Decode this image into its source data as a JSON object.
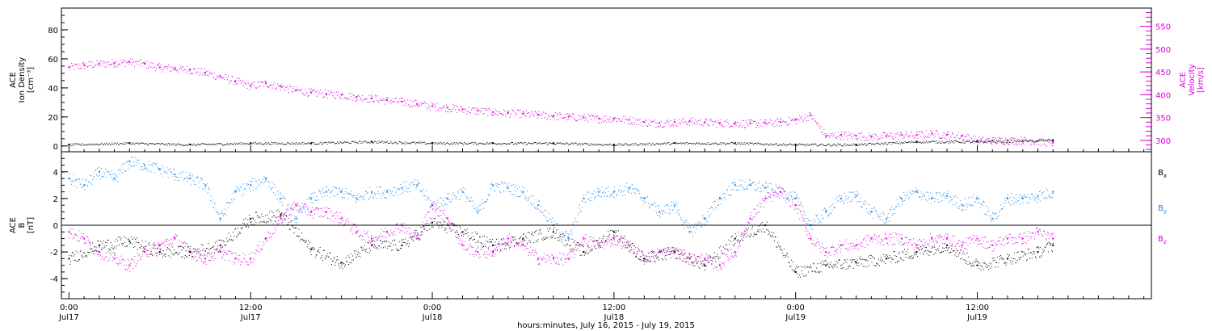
{
  "colors": {
    "axis": "#000000",
    "velocity": "#dd00dd",
    "density": "#000000",
    "bx": "#000000",
    "by": "#1e88e5",
    "bz": "#dd00dd"
  },
  "chart_data": [
    {
      "type": "scatter",
      "panel": "top",
      "xlabel": "hours:minutes, July 16, 2015 - July 19, 2015",
      "x_unit": "hours since 2015-07-17 00:00 UT",
      "xlim": [
        -0.5,
        71.5
      ],
      "x_ticks": [
        {
          "x": 0,
          "time": "0:00",
          "date": "Jul17"
        },
        {
          "x": 12,
          "time": "12:00",
          "date": "Jul17"
        },
        {
          "x": 24,
          "time": "0:00",
          "date": "Jul18"
        },
        {
          "x": 36,
          "time": "12:00",
          "date": "Jul18"
        },
        {
          "x": 48,
          "time": "0:00",
          "date": "Jul19"
        },
        {
          "x": 60,
          "time": "12:00",
          "date": "Jul19"
        }
      ],
      "left_axis": {
        "label_lines": [
          "ACE",
          "Ion Density",
          "[cm⁻³]"
        ],
        "ylim": [
          -4,
          95
        ],
        "ticks": [
          0,
          20,
          40,
          60,
          80
        ]
      },
      "right_axis": {
        "label_lines": [
          "ACE",
          "Velocity",
          "[km/s]"
        ],
        "ylim": [
          275,
          590
        ],
        "ticks": [
          300,
          350,
          400,
          450,
          500,
          550
        ]
      },
      "series": [
        {
          "name": "Velocity",
          "axis": "right",
          "color": "#dd00dd",
          "x": [
            0,
            1,
            2,
            3,
            4,
            5,
            6,
            7,
            8,
            9,
            10,
            11,
            12,
            13,
            14,
            15,
            16,
            17,
            18,
            19,
            20,
            21,
            22,
            23,
            24,
            25,
            26,
            27,
            28,
            29,
            30,
            31,
            32,
            33,
            34,
            35,
            36,
            37,
            38,
            39,
            40,
            41,
            42,
            43,
            44,
            45,
            46,
            47,
            48,
            49,
            50,
            51,
            52,
            53,
            54,
            55,
            56,
            57,
            58,
            59,
            60,
            61,
            62,
            63,
            64,
            65
          ],
          "values": [
            460,
            465,
            468,
            470,
            472,
            468,
            460,
            458,
            455,
            448,
            440,
            430,
            420,
            425,
            418,
            410,
            405,
            402,
            400,
            395,
            392,
            388,
            385,
            380,
            375,
            372,
            368,
            365,
            362,
            360,
            358,
            356,
            354,
            352,
            350,
            348,
            348,
            345,
            340,
            338,
            340,
            342,
            340,
            338,
            338,
            337,
            338,
            340,
            345,
            355,
            310,
            312,
            310,
            308,
            310,
            312,
            312,
            315,
            312,
            310,
            300,
            300,
            300,
            300,
            298,
            295
          ]
        },
        {
          "name": "Ion Density",
          "axis": "left",
          "color": "#000000",
          "x": [
            0,
            4,
            8,
            12,
            16,
            20,
            24,
            28,
            32,
            36,
            40,
            44,
            48,
            52,
            56,
            60,
            65
          ],
          "values": [
            1,
            2,
            1,
            2,
            2,
            3,
            2,
            2,
            2,
            1,
            2,
            2,
            1,
            1,
            3,
            3,
            4
          ]
        }
      ]
    },
    {
      "type": "scatter",
      "panel": "bottom",
      "xlim": [
        -0.5,
        71.5
      ],
      "ylabel_lines": [
        "ACE",
        "B",
        "[nT]"
      ],
      "ylim": [
        -5.5,
        5.5
      ],
      "y_ticks": [
        -4,
        -2,
        0,
        2,
        4
      ],
      "zero_line": true,
      "legend_position": "right",
      "series": [
        {
          "name": "Bx",
          "color": "#000000",
          "x": [
            0,
            2,
            4,
            6,
            8,
            10,
            12,
            14,
            16,
            18,
            20,
            22,
            24,
            26,
            28,
            30,
            32,
            34,
            36,
            38,
            40,
            42,
            44,
            46,
            48,
            50,
            52,
            54,
            56,
            58,
            60,
            62,
            64,
            65
          ],
          "values": [
            -2.5,
            -1.5,
            -1.2,
            -2.0,
            -2.0,
            -1.5,
            0.5,
            0.8,
            -1.8,
            -2.8,
            -1.5,
            -1.5,
            0.2,
            -0.5,
            -1.5,
            -1.0,
            -0.5,
            -2.0,
            -0.5,
            -2.5,
            -2.0,
            -3.0,
            -1.0,
            0.0,
            -3.5,
            -3.0,
            -2.8,
            -2.5,
            -2.0,
            -1.5,
            -3.0,
            -2.5,
            -2.0,
            -1.5
          ]
        },
        {
          "name": "By",
          "color": "#1e88e5",
          "x": [
            0,
            1,
            2,
            3,
            4,
            5,
            6,
            7,
            8,
            9,
            10,
            11,
            12,
            13,
            14,
            15,
            16,
            17,
            18,
            19,
            20,
            21,
            22,
            23,
            24,
            25,
            26,
            27,
            28,
            29,
            30,
            31,
            32,
            33,
            34,
            35,
            36,
            37,
            38,
            39,
            40,
            41,
            42,
            43,
            44,
            45,
            46,
            47,
            48,
            49,
            50,
            51,
            52,
            53,
            54,
            55,
            56,
            57,
            58,
            59,
            60,
            61,
            62,
            63,
            64,
            65
          ],
          "values": [
            3.5,
            3.0,
            4.0,
            3.5,
            4.8,
            4.5,
            4.2,
            3.8,
            3.5,
            3.0,
            0.5,
            2.5,
            3.0,
            3.5,
            2.0,
            0.5,
            2.0,
            2.5,
            2.5,
            2.0,
            2.5,
            2.5,
            2.8,
            3.0,
            1.5,
            2.0,
            2.5,
            1.0,
            3.0,
            2.8,
            2.5,
            1.5,
            0.0,
            -1.0,
            2.0,
            2.5,
            2.5,
            2.8,
            2.0,
            1.0,
            1.5,
            -0.5,
            0.5,
            2.0,
            3.0,
            3.0,
            2.8,
            2.5,
            2.0,
            0.0,
            1.0,
            2.0,
            2.2,
            1.0,
            0.5,
            2.0,
            2.5,
            2.0,
            2.2,
            1.5,
            2.0,
            0.5,
            2.0,
            2.0,
            2.2,
            2.5
          ]
        },
        {
          "name": "Bz",
          "color": "#dd00dd",
          "x": [
            0,
            1,
            2,
            3,
            4,
            5,
            6,
            7,
            8,
            9,
            10,
            11,
            12,
            13,
            14,
            15,
            16,
            17,
            18,
            19,
            20,
            21,
            22,
            23,
            24,
            25,
            26,
            27,
            28,
            29,
            30,
            31,
            32,
            33,
            34,
            35,
            36,
            37,
            38,
            39,
            40,
            41,
            42,
            43,
            44,
            45,
            46,
            47,
            48,
            49,
            50,
            51,
            52,
            53,
            54,
            55,
            56,
            57,
            58,
            59,
            60,
            61,
            62,
            63,
            64,
            65
          ],
          "values": [
            -0.5,
            -1.0,
            -2.0,
            -2.5,
            -3.0,
            -2.0,
            -1.5,
            -1.0,
            -2.0,
            -2.5,
            -2.0,
            -2.5,
            -2.5,
            -1.0,
            0.5,
            1.5,
            1.0,
            1.0,
            0.5,
            -0.5,
            -1.0,
            -0.5,
            0.0,
            -1.0,
            1.5,
            0.5,
            -1.5,
            -2.0,
            -2.0,
            -1.0,
            -1.5,
            -2.5,
            -2.5,
            -2.5,
            -1.0,
            -1.5,
            -1.0,
            -1.5,
            -2.5,
            -2.0,
            -2.0,
            -2.5,
            -2.5,
            -3.0,
            -2.0,
            0.5,
            2.0,
            2.5,
            1.5,
            -1.0,
            -2.0,
            -1.5,
            -1.5,
            -1.0,
            -1.0,
            -1.0,
            -1.5,
            -1.0,
            -1.0,
            -1.5,
            -1.0,
            -1.5,
            -1.0,
            -1.0,
            -0.5,
            -1.0
          ]
        }
      ]
    }
  ]
}
